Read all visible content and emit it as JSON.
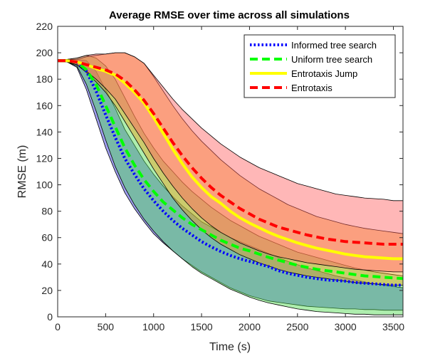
{
  "chart_data": {
    "type": "line",
    "title": "Average RMSE over time across all simulations",
    "xlabel": "Time (s)",
    "ylabel": "RMSE (m)",
    "xlim": [
      0,
      3600
    ],
    "ylim": [
      0,
      220
    ],
    "xticks": [
      0,
      500,
      1000,
      1500,
      2000,
      2500,
      3000,
      3500
    ],
    "yticks": [
      0,
      20,
      40,
      60,
      80,
      100,
      120,
      140,
      160,
      180,
      200,
      220
    ],
    "grid": false,
    "legend_position": "top-right",
    "series": [
      {
        "name": "Informed tree search",
        "color": "#0000ff",
        "line_style": "dotted",
        "band_color": "#2a2ae0",
        "x": [
          0,
          100,
          200,
          300,
          400,
          500,
          600,
          700,
          800,
          900,
          1000,
          1100,
          1200,
          1300,
          1400,
          1500,
          1600,
          1700,
          1800,
          1900,
          2000,
          2100,
          2200,
          2300,
          2400,
          2500,
          2600,
          2700,
          2800,
          2900,
          3000,
          3100,
          3200,
          3300,
          3400,
          3500,
          3600
        ],
        "mean": [
          194,
          194,
          193,
          186,
          171,
          153,
          136,
          120,
          108,
          97,
          88,
          80,
          73,
          67,
          62,
          57,
          53,
          49.5,
          46.5,
          44,
          42,
          40,
          38,
          35,
          33,
          31.5,
          30,
          29,
          28,
          27.5,
          27,
          26,
          25.5,
          25,
          24.5,
          24,
          24
        ],
        "upper": [
          195,
          195,
          195,
          194,
          186,
          172,
          158,
          142,
          130,
          118,
          108,
          99,
          91,
          84,
          78,
          72,
          68,
          64,
          60,
          57,
          54,
          51,
          48,
          45,
          42,
          39.5,
          37,
          35,
          33,
          31,
          29.5,
          28,
          26.5,
          25,
          24,
          23,
          22
        ],
        "lower": [
          193,
          193,
          189,
          172,
          150,
          128,
          110,
          94,
          82,
          72,
          63,
          56,
          50,
          44,
          39,
          34,
          30,
          26,
          22,
          19,
          16,
          14,
          12,
          11,
          10,
          9,
          8,
          7.5,
          7,
          6.5,
          6,
          6,
          5.5,
          5.5,
          5,
          5,
          5
        ]
      },
      {
        "name": "Uniform tree search",
        "color": "#00ff00",
        "line_style": "dashed",
        "band_color": "#4cd94c",
        "x": [
          0,
          100,
          200,
          300,
          400,
          500,
          600,
          700,
          800,
          900,
          1000,
          1100,
          1200,
          1300,
          1400,
          1500,
          1600,
          1700,
          1800,
          1900,
          2000,
          2100,
          2200,
          2300,
          2400,
          2500,
          2600,
          2700,
          2800,
          2900,
          3000,
          3100,
          3200,
          3300,
          3400,
          3500,
          3600
        ],
        "mean": [
          194,
          194,
          193,
          187,
          176,
          160,
          144,
          128,
          115,
          104,
          95,
          87,
          81,
          75,
          70,
          66,
          62,
          58,
          55,
          52,
          50,
          47.5,
          45,
          43,
          41,
          39,
          37.5,
          36,
          35,
          34,
          33,
          32,
          31,
          30.5,
          30,
          29.5,
          29
        ],
        "upper": [
          195,
          195,
          196,
          198,
          196,
          190,
          180,
          166,
          152,
          139,
          128,
          118,
          110,
          102,
          95,
          89,
          83,
          78,
          73,
          69,
          65,
          61,
          58,
          55,
          52,
          49,
          47,
          45,
          43,
          41,
          39,
          37,
          35.5,
          34,
          33,
          32,
          31
        ],
        "lower": [
          193,
          193,
          190,
          176,
          156,
          134,
          114,
          98,
          85,
          74,
          65,
          57,
          50,
          44,
          38,
          33,
          29,
          25,
          21,
          18,
          15,
          12.5,
          10.5,
          9,
          7.5,
          6,
          5,
          4,
          3.5,
          3,
          2.5,
          2,
          2,
          1.5,
          1.5,
          1.5,
          1.5
        ]
      },
      {
        "name": "Entrotaxis Jump",
        "color": "#ffff00",
        "line_style": "solid",
        "band_color": "#f0a020",
        "x": [
          0,
          100,
          200,
          300,
          400,
          500,
          600,
          700,
          800,
          900,
          1000,
          1100,
          1200,
          1300,
          1400,
          1500,
          1600,
          1700,
          1800,
          1900,
          2000,
          2100,
          2200,
          2300,
          2400,
          2500,
          2600,
          2700,
          2800,
          2900,
          3000,
          3100,
          3200,
          3300,
          3400,
          3500,
          3600
        ],
        "mean": [
          194,
          194,
          193,
          191,
          188,
          186,
          183,
          177,
          170,
          162,
          151,
          139,
          127,
          116,
          106,
          98,
          91,
          86,
          80,
          75,
          71,
          67.5,
          64,
          61,
          58.5,
          56,
          54,
          52,
          50.5,
          49,
          47.5,
          46.5,
          45.5,
          45,
          44.5,
          44,
          44
        ],
        "upper": [
          195,
          195,
          195,
          197,
          198,
          199,
          200,
          200,
          197,
          192,
          182,
          171,
          160,
          150,
          141,
          133,
          126,
          119,
          113,
          107,
          102,
          97,
          93,
          89,
          85,
          82,
          79,
          76,
          74,
          72,
          70,
          68.5,
          67,
          66,
          65,
          64,
          63
        ],
        "lower": [
          193,
          193,
          191,
          185,
          178,
          170,
          160,
          148,
          136,
          124,
          112,
          101,
          90,
          81,
          73,
          66,
          60,
          55,
          51,
          47,
          44,
          41,
          38.5,
          36,
          34,
          32.5,
          31,
          30,
          29,
          28,
          27,
          26,
          25.5,
          25,
          24.5,
          24,
          24
        ]
      },
      {
        "name": "Entrotaxis",
        "color": "#ff0000",
        "line_style": "dashed",
        "band_color": "#ff6060",
        "x": [
          0,
          100,
          200,
          300,
          400,
          500,
          600,
          700,
          800,
          900,
          1000,
          1100,
          1200,
          1300,
          1400,
          1500,
          1600,
          1700,
          1800,
          1900,
          2000,
          2100,
          2200,
          2300,
          2400,
          2500,
          2600,
          2700,
          2800,
          2900,
          3000,
          3100,
          3200,
          3300,
          3400,
          3500,
          3600
        ],
        "mean": [
          194,
          194,
          193,
          191,
          189,
          187,
          184,
          179,
          172,
          164,
          154,
          143,
          132,
          122,
          113,
          105,
          98,
          92,
          87,
          82,
          78,
          74,
          71,
          68,
          66,
          64,
          62,
          60.5,
          59,
          58,
          57,
          56.5,
          56,
          55.5,
          55,
          55,
          55
        ],
        "upper": [
          195,
          195,
          196,
          198,
          199,
          199,
          200,
          200,
          197,
          192,
          183,
          174,
          165,
          157,
          150,
          143,
          137,
          131,
          126,
          121,
          117,
          113,
          110,
          107,
          104,
          101,
          99,
          97,
          95,
          93,
          92,
          91,
          90,
          89.5,
          89,
          88,
          88
        ],
        "lower": [
          193,
          193,
          191,
          186,
          180,
          173,
          165,
          154,
          143,
          132,
          120,
          109,
          99,
          90,
          82,
          75,
          69,
          64,
          60,
          56,
          53,
          50,
          47.5,
          45.5,
          44,
          42.5,
          41,
          40,
          39,
          38,
          37,
          36,
          35.5,
          35,
          34.5,
          34,
          34
        ]
      }
    ]
  }
}
